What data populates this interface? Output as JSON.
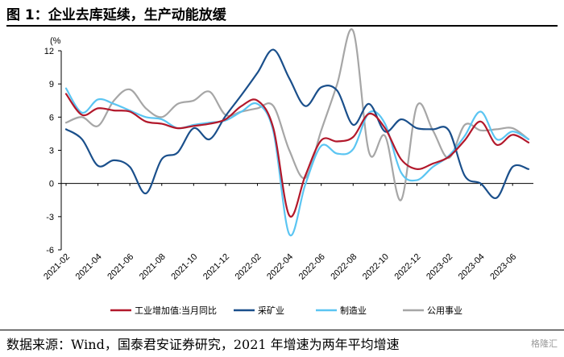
{
  "header": {
    "title": "图 1：企业去库延续，生产动能放缓"
  },
  "footer": {
    "source": "数据来源：Wind，国泰君安证券研究，2021 年增速为两年平均增速",
    "watermark": "格隆汇"
  },
  "chart_data": {
    "type": "line",
    "unit": "(%",
    "ylim": [
      -6,
      12
    ],
    "yticks": [
      -6,
      -3,
      0,
      3,
      6,
      9,
      12
    ],
    "tick_labels": [
      "2021-02",
      "2021-04",
      "2021-06",
      "2021-08",
      "2021-10",
      "2021-12",
      "2022-02",
      "2022-04",
      "2022-06",
      "2022-08",
      "2022-10",
      "2022-12",
      "2023-02",
      "2023-04",
      "2023-06"
    ],
    "x": [
      "2021-02",
      "2021-03",
      "2021-04",
      "2021-05",
      "2021-06",
      "2021-07",
      "2021-08",
      "2021-09",
      "2021-10",
      "2021-11",
      "2021-12",
      "2022-01",
      "2022-02",
      "2022-03",
      "2022-04",
      "2022-05",
      "2022-06",
      "2022-07",
      "2022-08",
      "2022-09",
      "2022-10",
      "2022-11",
      "2022-12",
      "2023-01",
      "2023-02",
      "2023-03",
      "2023-04",
      "2023-05",
      "2023-06",
      "2023-07"
    ],
    "legend_position": "bottom",
    "grid": false,
    "series": [
      {
        "name": "工业增加值:当月同比",
        "color": "#b2182b",
        "values": [
          8.1,
          6.2,
          6.8,
          6.6,
          6.5,
          5.6,
          5.4,
          5.0,
          5.2,
          5.4,
          5.8,
          7.0,
          7.5,
          5.0,
          -2.9,
          0.7,
          3.9,
          3.8,
          4.2,
          6.3,
          5.0,
          2.2,
          1.3,
          1.8,
          2.4,
          3.9,
          5.6,
          3.5,
          4.4,
          3.7
        ]
      },
      {
        "name": "采矿业",
        "color": "#1a4f8b",
        "values": [
          4.9,
          4.0,
          1.6,
          2.1,
          1.5,
          -0.9,
          2.2,
          2.8,
          5.0,
          4.0,
          6.1,
          8.0,
          10.0,
          12.1,
          9.5,
          7.0,
          8.7,
          8.4,
          5.3,
          7.2,
          4.7,
          5.8,
          5.0,
          4.9,
          4.8,
          0.7,
          0.0,
          -1.3,
          1.5,
          1.3
        ]
      },
      {
        "name": "制造业",
        "color": "#5bc5f2",
        "values": [
          8.6,
          6.4,
          7.6,
          7.2,
          6.6,
          6.0,
          5.8,
          5.0,
          5.3,
          5.5,
          5.7,
          6.5,
          7.2,
          4.7,
          -4.6,
          -0.1,
          3.4,
          2.7,
          3.1,
          6.4,
          5.4,
          1.0,
          0.3,
          1.5,
          2.5,
          4.3,
          6.5,
          4.0,
          4.7,
          4.0
        ]
      },
      {
        "name": "公用事业",
        "color": "#a6a6a6",
        "values": [
          5.5,
          6.0,
          5.2,
          7.5,
          8.5,
          6.8,
          6.0,
          7.2,
          7.5,
          8.3,
          6.2,
          6.5,
          6.8,
          7.0,
          3.0,
          0.5,
          4.8,
          9.0,
          13.8,
          2.8,
          4.3,
          -1.5,
          7.0,
          4.8,
          2.3,
          5.3,
          4.8,
          4.9,
          5.0,
          4.0
        ]
      }
    ]
  }
}
